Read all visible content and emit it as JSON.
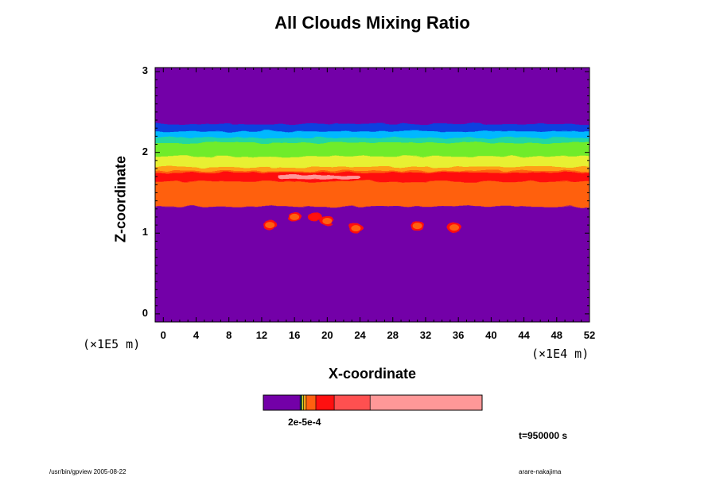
{
  "colors": {
    "background_level": "#7300a8",
    "level_blue": "#1040e0",
    "level_cyan": "#00b8ff",
    "level_teal": "#20d8a0",
    "level_green": "#70ec2a",
    "level_yellow": "#e8f030",
    "level_orange_light": "#ffa018",
    "level_orange": "#ff6010",
    "level_red": "#ff1010",
    "level_red_light": "#ff5050",
    "level_pink": "#ff9898"
  },
  "chart_data": {
    "type": "heatmap",
    "title": "All Clouds Mixing Ratio",
    "xlabel": "X-coordinate",
    "ylabel": "Z-coordinate",
    "x_scale_label": "(×1E4 m)",
    "y_scale_label": "(×1E5 m)",
    "xlim": [
      -1,
      52
    ],
    "ylim": [
      -0.1,
      3.05
    ],
    "x_ticks": [
      "0",
      "4",
      "8",
      "12",
      "16",
      "20",
      "24",
      "28",
      "32",
      "36",
      "40",
      "44",
      "48",
      "52"
    ],
    "y_ticks": [
      "0",
      "1",
      "2",
      "3"
    ],
    "colorbar": {
      "tick_label": "2e-5e-4",
      "bands": [
        {
          "color": "#7300a8",
          "fraction": 0.168
        },
        {
          "color": "#1040e0",
          "fraction": 0.004
        },
        {
          "color": "#20d8a0",
          "fraction": 0.004
        },
        {
          "color": "#e8f030",
          "fraction": 0.008
        },
        {
          "color": "#ffa018",
          "fraction": 0.012
        },
        {
          "color": "#ff6010",
          "fraction": 0.044
        },
        {
          "color": "#ff1010",
          "fraction": 0.084
        },
        {
          "color": "#ff5050",
          "fraction": 0.164
        },
        {
          "color": "#ff9898",
          "fraction": 0.512
        }
      ]
    },
    "layers": [
      {
        "name": "blue",
        "z_range": [
          2.24,
          2.35
        ],
        "color": "#1040e0"
      },
      {
        "name": "cyan",
        "z_range": [
          2.16,
          2.26
        ],
        "color": "#00b8ff"
      },
      {
        "name": "teal",
        "z_range": [
          2.08,
          2.18
        ],
        "color": "#20d8a0"
      },
      {
        "name": "green",
        "z_range": [
          1.9,
          2.12
        ],
        "color": "#70ec2a"
      },
      {
        "name": "yellow",
        "z_range": [
          1.8,
          1.95
        ],
        "color": "#e8f030"
      },
      {
        "name": "orange_light",
        "z_range": [
          1.74,
          1.82
        ],
        "color": "#ffa018"
      },
      {
        "name": "orange",
        "z_range": [
          1.33,
          1.77
        ],
        "color": "#ff6010"
      },
      {
        "name": "red",
        "z_range": [
          1.64,
          1.75
        ],
        "color": "#ff1010"
      },
      {
        "name": "pink",
        "z_range": [
          1.67,
          1.72
        ],
        "x_range": [
          14,
          24
        ],
        "color": "#ff9898"
      }
    ],
    "blobs": [
      {
        "x": 13,
        "z": 1.1,
        "color": "#ff6010"
      },
      {
        "x": 16,
        "z": 1.2,
        "color": "#ff6010"
      },
      {
        "x": 18.5,
        "z": 1.2,
        "color": "#ff1010"
      },
      {
        "x": 20,
        "z": 1.15,
        "color": "#ff6010"
      },
      {
        "x": 23.5,
        "z": 1.06,
        "color": "#ff6010"
      },
      {
        "x": 31,
        "z": 1.09,
        "color": "#ff6010"
      },
      {
        "x": 35.5,
        "z": 1.07,
        "color": "#ff6010"
      }
    ],
    "grid": false
  },
  "time_label": "t=950000 s",
  "footer_left": "/usr/bin/gpview 2005-08-22",
  "footer_right": "arare-nakajima"
}
